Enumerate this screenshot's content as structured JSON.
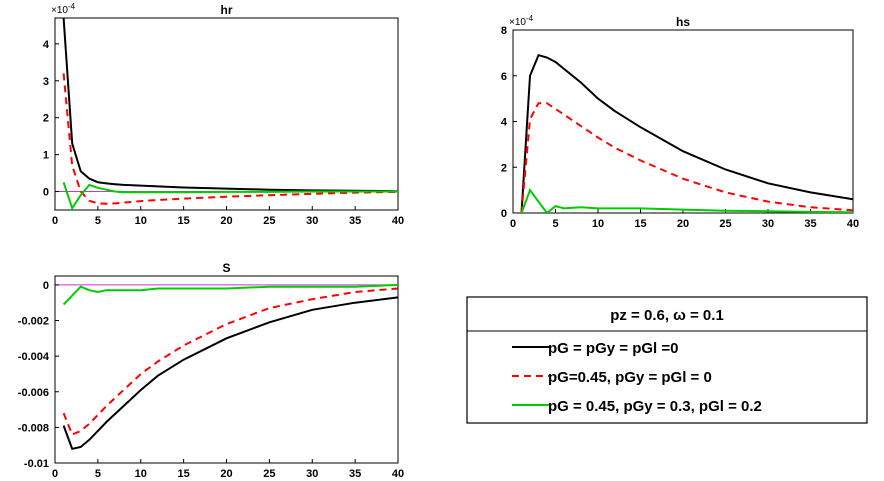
{
  "legend": {
    "title": "pz = 0.6, ω = 0.1",
    "placement": "lower-right",
    "entries": [
      {
        "label": "pG = pGy = pGl =0",
        "color": "#000000",
        "dash": "solid"
      },
      {
        "label": "pG=0.45, pGy = pGl = 0",
        "color": "#ff0000",
        "dash": "dashed"
      },
      {
        "label": "pG = 0.45, pGy = 0.3, pGl = 0.2",
        "color": "#00cc00",
        "dash": "solid"
      }
    ]
  },
  "chart_data": [
    {
      "type": "line",
      "title": "hr",
      "exponent_label": "×10",
      "exponent_power": "-4",
      "xlim": [
        0,
        40
      ],
      "ylim": [
        -0.5,
        4.7
      ],
      "xticks": [
        0,
        5,
        10,
        15,
        20,
        25,
        30,
        35,
        40
      ],
      "xtick_labels": [
        "0",
        "5",
        "10",
        "15",
        "20",
        "25",
        "30",
        "35",
        "40"
      ],
      "yticks": [
        0,
        1,
        2,
        3,
        4
      ],
      "ytick_labels": [
        "0",
        "1",
        "2",
        "3",
        "4"
      ],
      "x": [
        1,
        2,
        3,
        4,
        5,
        6,
        7,
        8,
        9,
        10,
        12,
        15,
        20,
        25,
        30,
        35,
        40
      ],
      "series": [
        {
          "color": "#000000",
          "dash": "solid",
          "values": [
            4.7,
            1.3,
            0.55,
            0.35,
            0.25,
            0.22,
            0.2,
            0.18,
            0.17,
            0.16,
            0.14,
            0.11,
            0.08,
            0.05,
            0.03,
            0.02,
            0.01
          ]
        },
        {
          "color": "#ff0000",
          "dash": "dashed",
          "values": [
            3.2,
            0.7,
            0.0,
            -0.25,
            -0.32,
            -0.33,
            -0.32,
            -0.3,
            -0.28,
            -0.26,
            -0.23,
            -0.19,
            -0.14,
            -0.1,
            -0.06,
            -0.03,
            -0.01
          ]
        },
        {
          "color": "#00cc00",
          "dash": "solid",
          "values": [
            0.25,
            -0.45,
            -0.1,
            0.18,
            0.1,
            0.05,
            0.0,
            -0.02,
            -0.02,
            -0.02,
            -0.02,
            -0.02,
            -0.01,
            -0.01,
            0.0,
            0.0,
            0.0
          ]
        }
      ]
    },
    {
      "type": "line",
      "title": "hs",
      "exponent_label": "×10",
      "exponent_power": "-4",
      "xlim": [
        0,
        40
      ],
      "ylim": [
        0,
        8
      ],
      "xticks": [
        0,
        5,
        10,
        15,
        20,
        25,
        30,
        35,
        40
      ],
      "xtick_labels": [
        "0",
        "5",
        "10",
        "15",
        "20",
        "25",
        "30",
        "35",
        "40"
      ],
      "yticks": [
        0,
        2,
        4,
        6,
        8
      ],
      "ytick_labels": [
        "0",
        "2",
        "4",
        "6",
        "8"
      ],
      "x": [
        1,
        2,
        3,
        4,
        5,
        6,
        8,
        10,
        12,
        15,
        20,
        25,
        30,
        35,
        40
      ],
      "series": [
        {
          "color": "#000000",
          "dash": "solid",
          "values": [
            0.0,
            6.0,
            6.9,
            6.8,
            6.6,
            6.3,
            5.7,
            5.0,
            4.45,
            3.75,
            2.7,
            1.9,
            1.3,
            0.9,
            0.6
          ]
        },
        {
          "color": "#ff0000",
          "dash": "dashed",
          "values": [
            0.0,
            4.1,
            4.8,
            4.8,
            4.55,
            4.3,
            3.8,
            3.3,
            2.85,
            2.3,
            1.5,
            0.9,
            0.5,
            0.25,
            0.12
          ]
        },
        {
          "color": "#00cc00",
          "dash": "solid",
          "values": [
            0.0,
            1.0,
            0.5,
            0.0,
            0.3,
            0.2,
            0.25,
            0.2,
            0.2,
            0.2,
            0.15,
            0.1,
            0.08,
            0.05,
            0.03
          ]
        }
      ]
    },
    {
      "type": "line",
      "title": "S",
      "exponent_label": "",
      "exponent_power": "",
      "xlim": [
        0,
        40
      ],
      "ylim": [
        -0.01,
        0.0005
      ],
      "xticks": [
        0,
        5,
        10,
        15,
        20,
        25,
        30,
        35,
        40
      ],
      "xtick_labels": [
        "0",
        "5",
        "10",
        "15",
        "20",
        "25",
        "30",
        "35",
        "40"
      ],
      "yticks": [
        0,
        -0.002,
        -0.004,
        -0.006,
        -0.008,
        -0.01
      ],
      "ytick_labels": [
        "0",
        "-0.002",
        "-0.004",
        "-0.006",
        "-0.008",
        "-0.01"
      ],
      "x": [
        1,
        2,
        3,
        4,
        5,
        6,
        8,
        10,
        12,
        15,
        20,
        25,
        30,
        35,
        40
      ],
      "series": [
        {
          "color": "#000000",
          "dash": "solid",
          "values": [
            -0.0079,
            -0.0092,
            -0.0091,
            -0.0087,
            -0.0082,
            -0.0077,
            -0.0068,
            -0.0059,
            -0.0051,
            -0.0042,
            -0.003,
            -0.0021,
            -0.0014,
            -0.001,
            -0.0007
          ]
        },
        {
          "color": "#ff0000",
          "dash": "dashed",
          "values": [
            -0.0072,
            -0.0084,
            -0.0082,
            -0.0078,
            -0.0073,
            -0.0068,
            -0.0059,
            -0.005,
            -0.0043,
            -0.0034,
            -0.0022,
            -0.0013,
            -0.0008,
            -0.0004,
            -0.0002
          ]
        },
        {
          "color": "#00cc00",
          "dash": "solid",
          "values": [
            -0.0011,
            -0.0006,
            -0.0001,
            -0.0003,
            -0.0004,
            -0.0003,
            -0.0003,
            -0.0003,
            -0.0002,
            -0.0002,
            -0.0002,
            -0.0001,
            -0.0001,
            -0.0001,
            0.0
          ]
        }
      ]
    }
  ]
}
